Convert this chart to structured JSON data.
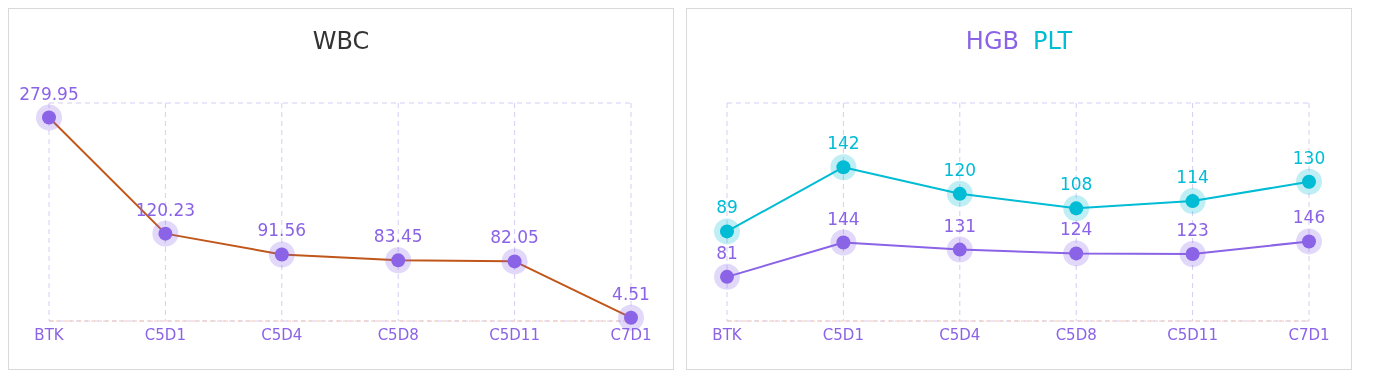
{
  "chart_data": [
    {
      "type": "line",
      "title": "WBC",
      "categories": [
        "BTK",
        "C5D1",
        "C5D4",
        "C5D8",
        "C5D11",
        "C7D1"
      ],
      "series": [
        {
          "color": "#c0561a",
          "colors": [
            "#8a63e6",
            "#8a63e6",
            "#8a63e6",
            "#8a63e6",
            "#8a63e6",
            "#8a63e6"
          ],
          "values": [
            279.95,
            120.23,
            91.56,
            83.45,
            82.05,
            4.51
          ]
        }
      ],
      "data_labels": true,
      "grid": true,
      "marker": "circle",
      "legend": false
    },
    {
      "type": "line",
      "categories": [
        "BTK",
        "C5D1",
        "C5D4",
        "C5D8",
        "C5D11",
        "C7D1"
      ],
      "series": [
        {
          "name": "HGB",
          "color": "#8a63e6",
          "values": [
            81,
            144,
            131,
            124,
            123,
            146
          ]
        },
        {
          "name": "PLT",
          "color": "#00bcd4",
          "axis": "y2",
          "values": [
            89,
            142,
            120,
            108,
            114,
            130
          ]
        }
      ],
      "ylim": [
        0,
        400
      ],
      "y2lim": [
        15,
        195
      ],
      "data_labels": true,
      "grid": true,
      "marker": "circle",
      "legend": "top"
    }
  ]
}
